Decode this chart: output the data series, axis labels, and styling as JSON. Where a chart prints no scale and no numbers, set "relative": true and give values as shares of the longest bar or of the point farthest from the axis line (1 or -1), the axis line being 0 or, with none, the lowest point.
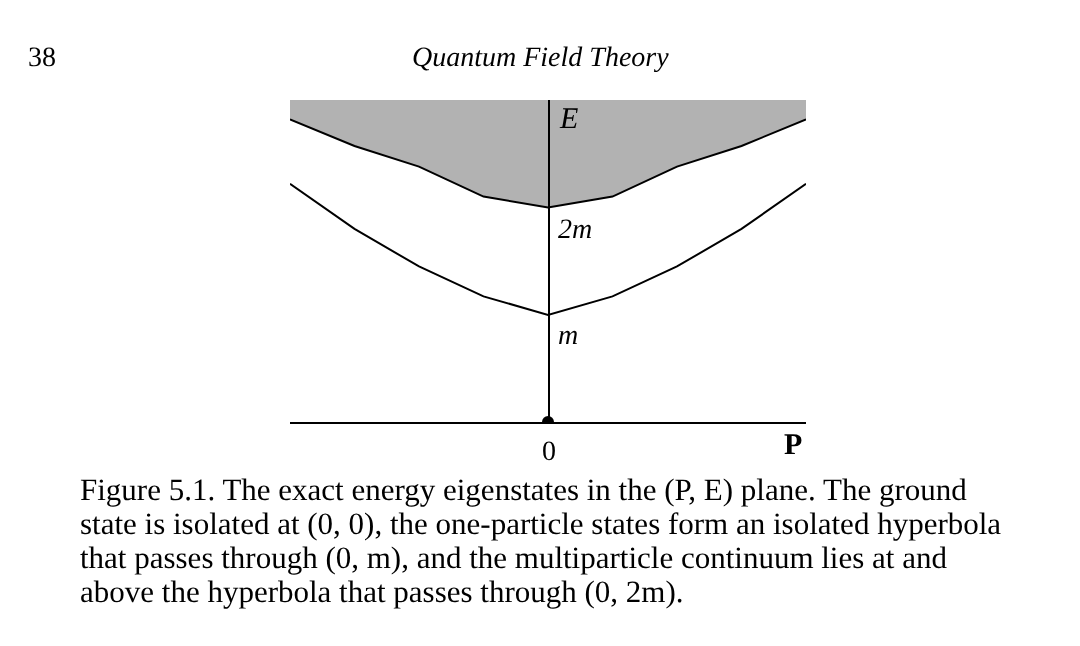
{
  "chart_data": {
    "type": "line",
    "relative": true,
    "xlabel": "P",
    "ylabel": "E",
    "categories": [
      null,
      null,
      null,
      null,
      null,
      null,
      null,
      null,
      null
    ],
    "series": [
      {
        "color": "#000000",
        "values": [
          1,
          0.912,
          0.844,
          0.745,
          0.709,
          0.745,
          0.844,
          0.912,
          1
        ],
        "lower": [
          1,
          0.912,
          0.844,
          0.745,
          0.709,
          0.745,
          0.844,
          0.912,
          1
        ],
        "upper": [
          1.064,
          1.064,
          1.064,
          1.064,
          1.064,
          1.064,
          1.064,
          1.064,
          1.064
        ]
      },
      {
        "color": "#000000",
        "values": [
          0.787,
          0.638,
          0.514,
          0.415,
          0.354,
          0.415,
          0.514,
          0.638,
          0.787
        ]
      }
    ],
    "marker": "none",
    "line_style": "solid",
    "annotations": [
      "38",
      "Quantum Field Theory",
      "Figure 5.1. The exact energy eigenstates in the (P, E) plane. The ground",
      "state is isolated at (0, 0), the one-particle states form an isolated hyperbola",
      "that passes through (0, m), and the multiparticle continuum lies at and",
      "above the hyperbola that passes through (0, 2m).",
      {
        "text": "0",
        "y": 0
      },
      {
        "text": "m",
        "y": 0.354
      },
      {
        "text": "2m",
        "y": 0.709
      }
    ]
  }
}
